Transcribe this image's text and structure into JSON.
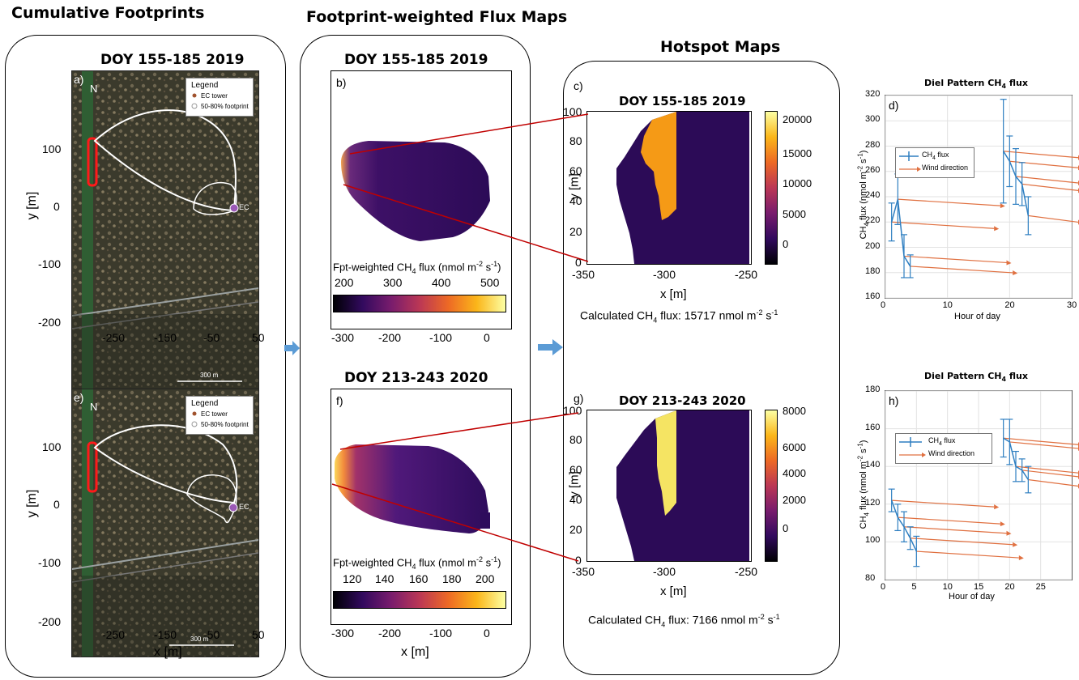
{
  "headers": {
    "cumulative": "Cumulative Footprints",
    "fluxmaps": "Footprint-weighted Flux Maps",
    "hotspot": "Hotspot Maps"
  },
  "periods": {
    "p2019": "DOY 155-185 2019",
    "p2020": "DOY 213-243 2020"
  },
  "panel_letters": [
    "a)",
    "b)",
    "c)",
    "d)",
    "e)",
    "f)",
    "g)",
    "h)"
  ],
  "footprint_maps": {
    "ylabel": "y [m]",
    "xlabel": "x [m]",
    "yticks": [
      "100",
      "0",
      "-100",
      "-200"
    ],
    "xticks": [
      "-250",
      "-150",
      "-50",
      "50"
    ],
    "legend_title": "Legend",
    "legend_items": [
      "EC tower",
      "50-80% footprint"
    ],
    "north": "N",
    "ec_label": "EC",
    "scale_bar": "300 m"
  },
  "flux_maps": {
    "xlabel": "x [m]",
    "xticks": [
      "-300",
      "-200",
      "-100",
      "0"
    ],
    "cbar_label": "Fpt-weighted CH",
    "cbar_label_tail": " flux (nmol m",
    "cbar_label_sup1": "-2",
    "cbar_label_mid": " s",
    "cbar_label_sup2": "-1",
    "cbar_label_end": ")",
    "cbar_ticks_2019": [
      "200",
      "300",
      "400",
      "500"
    ],
    "cbar_ticks_2020": [
      "120",
      "140",
      "160",
      "180",
      "200"
    ]
  },
  "hotspot_maps": {
    "ylabel": "y [m]",
    "xlabel": "x [m]",
    "yticks": [
      "100",
      "80",
      "60",
      "40",
      "20",
      "0"
    ],
    "xticks": [
      "-350",
      "-300",
      "-250"
    ],
    "cbar_ticks_2019": [
      "20000",
      "15000",
      "10000",
      "5000",
      "0"
    ],
    "cbar_ticks_2020": [
      "8000",
      "6000",
      "4000",
      "2000",
      "0"
    ],
    "calc_prefix": "Calculated CH",
    "calc_2019": "15717",
    "calc_2020": "7166",
    "calc_unit": " nmol m",
    "calc_sup1": "-2",
    "calc_s": " s",
    "calc_sup2": "-1"
  },
  "diel": {
    "title": "Diel Pattern CH",
    "title_tail": " flux",
    "xlabel": "Hour of day",
    "ylabel": "CH",
    "ylabel_tail": " flux (nmol m",
    "legend_flux": "CH",
    "legend_flux_tail": " flux",
    "legend_wind": "Wind direction",
    "yticks_d": [
      "320",
      "300",
      "280",
      "260",
      "240",
      "220",
      "200",
      "180",
      "160"
    ],
    "xticks_d": [
      "0",
      "10",
      "20",
      "30"
    ],
    "yticks_h": [
      "180",
      "160",
      "140",
      "120",
      "100",
      "80"
    ],
    "xticks_h": [
      "0",
      "5",
      "10",
      "15",
      "20",
      "25"
    ]
  },
  "subscript4": "4",
  "colors": {
    "flux_line": "#2f7fc1",
    "wind_arrow": "#e07040",
    "connector": "#c00000",
    "arrow": "#5b9bd5",
    "hotspot_2019": "#f59a16",
    "hotspot_2020": "#f5e463",
    "low": "#2c0b57"
  },
  "chart_data": [
    {
      "type": "line",
      "title": "Diel Pattern CH4 flux",
      "xlabel": "Hour of day",
      "ylabel": "CH4 flux (nmol m-2 s-1)",
      "xlim": [
        0,
        30
      ],
      "ylim": [
        160,
        320
      ],
      "series": [
        {
          "name": "CH4 flux",
          "x": [
            1,
            2,
            3,
            4,
            19,
            20,
            21,
            22,
            23
          ],
          "y": [
            220,
            238,
            193,
            185,
            276,
            268,
            256,
            250,
            225
          ],
          "err": [
            15,
            20,
            17,
            9,
            41,
            20,
            22,
            17,
            15
          ]
        }
      ]
    },
    {
      "type": "line",
      "title": "Diel Pattern CH4 flux",
      "xlabel": "Hour of day",
      "ylabel": "CH4 flux (nmol m-2 s-1)",
      "xlim": [
        0,
        30
      ],
      "ylim": [
        80,
        180
      ],
      "series": [
        {
          "name": "CH4 flux",
          "x": [
            1,
            2,
            3,
            4,
            5,
            19,
            20,
            21,
            22,
            23
          ],
          "y": [
            122,
            113,
            108,
            102,
            95,
            155,
            153,
            140,
            138,
            133
          ],
          "err": [
            6,
            7,
            8,
            6,
            8,
            10,
            12,
            8,
            6,
            7
          ]
        }
      ]
    }
  ]
}
